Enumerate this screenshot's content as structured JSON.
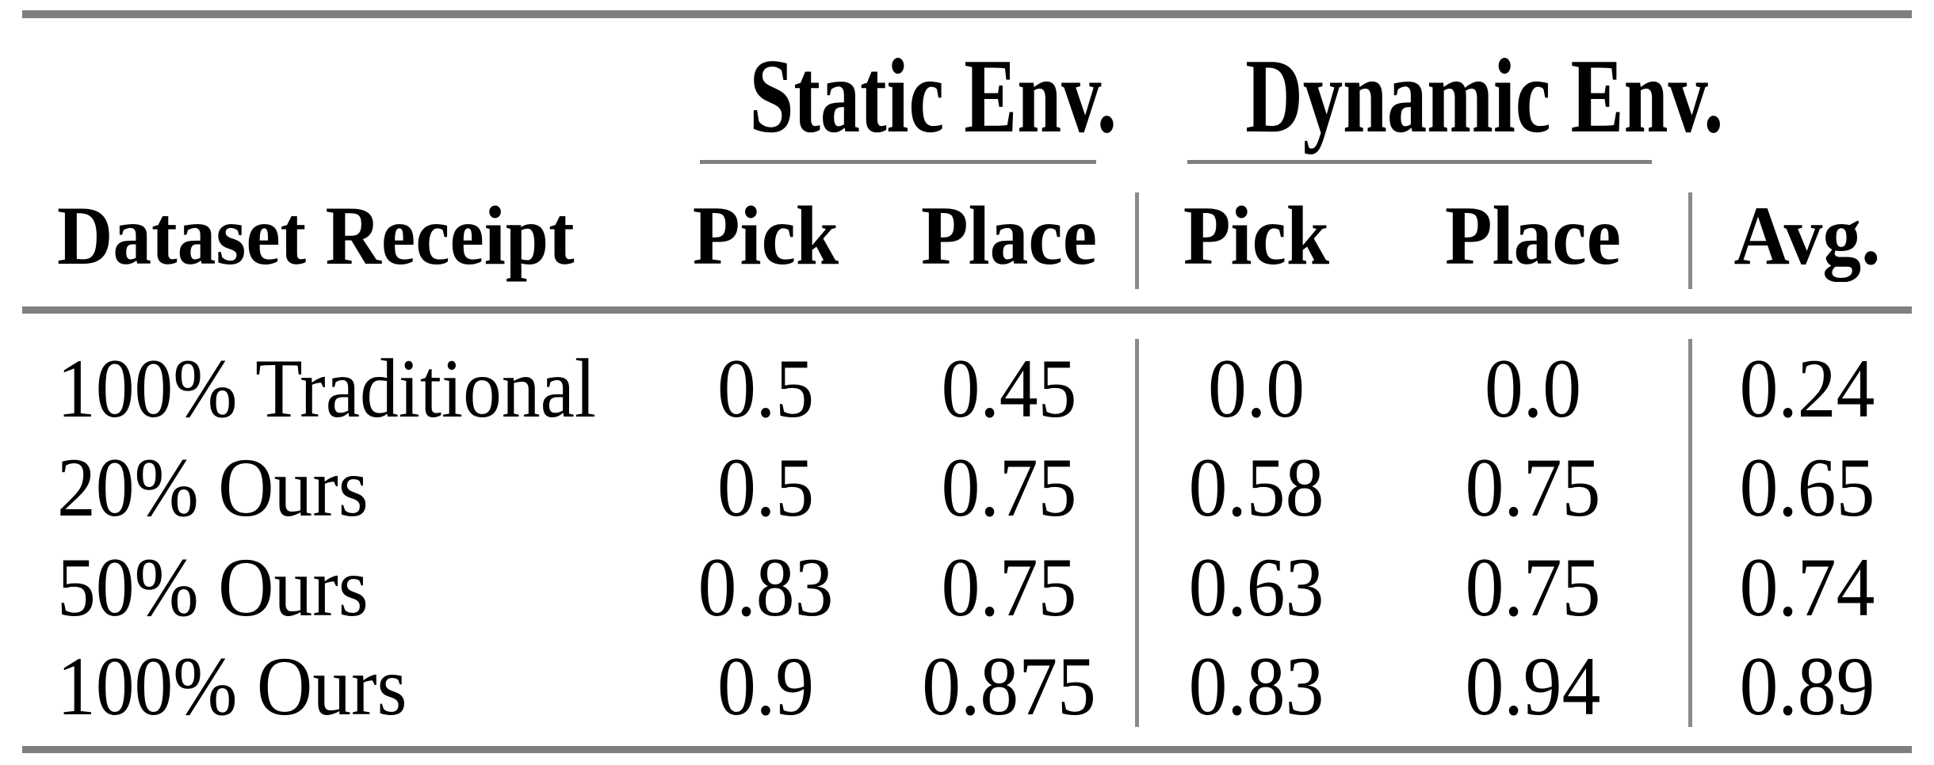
{
  "figure": {
    "kind": "paper-results-table",
    "column_groups": [
      {
        "label": "Static Env."
      },
      {
        "label": "Dynamic Env."
      }
    ],
    "headers": {
      "row_label": "Dataset Receipt",
      "static_pick": "Pick",
      "static_place": "Place",
      "dynamic_pick": "Pick",
      "dynamic_place": "Place",
      "avg": "Avg."
    },
    "rows": [
      {
        "label": "100% Traditional",
        "cells": [
          "0.5",
          "0.45",
          "0.0",
          "0.0",
          "0.24"
        ]
      },
      {
        "label": "20% Ours",
        "cells": [
          "0.5",
          "0.75",
          "0.58",
          "0.75",
          "0.65"
        ]
      },
      {
        "label": "50% Ours",
        "cells": [
          "0.83",
          "0.75",
          "0.63",
          "0.75",
          "0.74"
        ]
      },
      {
        "label": "100% Ours",
        "cells": [
          "0.9",
          "0.875",
          "0.83",
          "0.94",
          "0.89"
        ]
      }
    ],
    "colors": {
      "rule_gray": "#7f7f7f",
      "text": "#000000",
      "background": "#ffffff"
    }
  }
}
